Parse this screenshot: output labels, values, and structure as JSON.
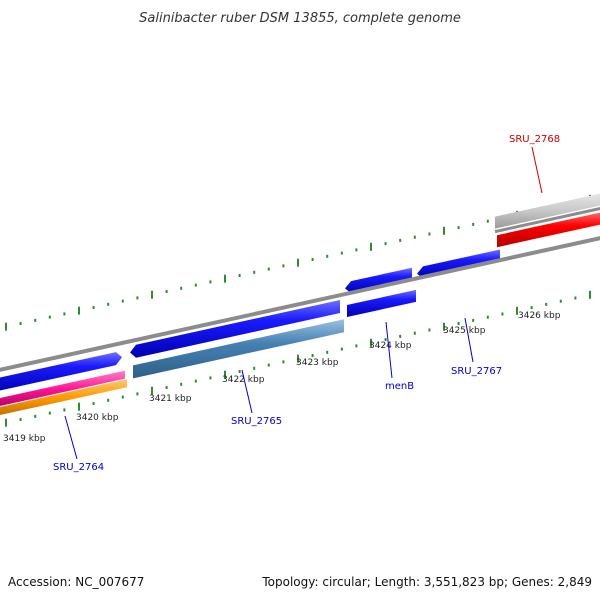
{
  "title": "Salinibacter ruber DSM 13855, complete genome",
  "footer": {
    "accession": "Accession: NC_007677",
    "summary": "Topology: circular; Length: 3,551,823 bp; Genes: 2,849"
  },
  "colors": {
    "backbone": "#8c8c8c",
    "tick": "#2e8b2e",
    "label_default": "#0000cc",
    "label_highlight": "#cc0000"
  },
  "kbp_labels": [
    "3419 kbp",
    "3420 kbp",
    "3421 kbp",
    "3422 kbp",
    "3423 kbp",
    "3424 kbp",
    "3425 kbp",
    "3426 kbp"
  ],
  "genes": [
    {
      "label": "SRU_2764",
      "color": "#0000cc"
    },
    {
      "label": "SRU_2765",
      "color": "#0000cc"
    },
    {
      "label": "menB",
      "color": "#0000cc"
    },
    {
      "label": "SRU_2767",
      "color": "#0000cc"
    },
    {
      "label": "SRU_2768",
      "color": "#cc0000"
    }
  ]
}
